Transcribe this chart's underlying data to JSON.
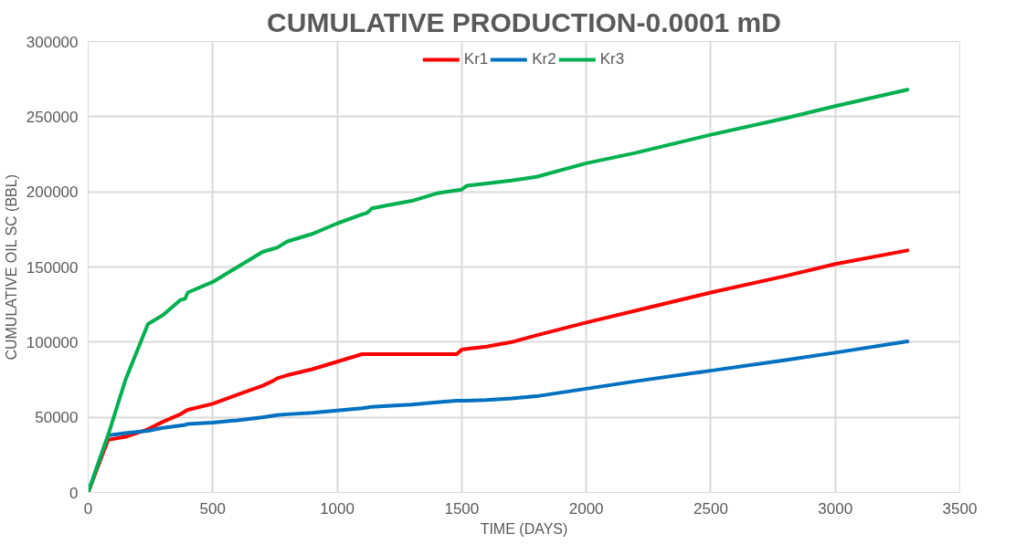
{
  "chart_data": {
    "type": "line",
    "title": "CUMULATIVE PRODUCTION-0.0001 mD",
    "xlabel": "TIME (DAYS)",
    "ylabel": "CUMULATIVE OIL SC (BBL)",
    "x": [
      0,
      80,
      150,
      240,
      300,
      370,
      390,
      400,
      500,
      600,
      700,
      740,
      760,
      800,
      900,
      1000,
      1100,
      1120,
      1140,
      1200,
      1300,
      1400,
      1480,
      1500,
      1520,
      1600,
      1700,
      1800,
      2000,
      2200,
      2500,
      2800,
      3000,
      3290
    ],
    "series": [
      {
        "name": "Kr1",
        "color": "#ff0000",
        "values": [
          0,
          35000,
          37000,
          42000,
          47000,
          52000,
          54000,
          55000,
          59000,
          65000,
          71000,
          74000,
          76000,
          78000,
          82000,
          87000,
          92000,
          92000,
          92000,
          92000,
          92000,
          92000,
          92000,
          95000,
          95500,
          97000,
          100000,
          104500,
          113000,
          121000,
          133000,
          144000,
          152000,
          161000
        ]
      },
      {
        "name": "Kr2",
        "color": "#0070c0",
        "values": [
          0,
          38000,
          39500,
          41000,
          43000,
          44500,
          45000,
          45500,
          46500,
          48000,
          50000,
          51000,
          51500,
          52000,
          53000,
          54500,
          56000,
          56500,
          57000,
          57500,
          58500,
          60000,
          61000,
          61000,
          61000,
          61500,
          62500,
          64000,
          69000,
          74000,
          81000,
          88000,
          93000,
          100500
        ]
      },
      {
        "name": "Kr3",
        "color": "#00b050",
        "values": [
          0,
          38000,
          75000,
          112000,
          118000,
          128000,
          129000,
          133000,
          140000,
          150000,
          160000,
          162000,
          163000,
          167000,
          172000,
          179000,
          185000,
          186000,
          189000,
          191000,
          194000,
          199000,
          201000,
          201500,
          204000,
          205500,
          207500,
          210000,
          219000,
          226000,
          238000,
          249000,
          257000,
          268000
        ]
      }
    ],
    "xlim": [
      0,
      3500
    ],
    "xticks": [
      0,
      500,
      1000,
      1500,
      2000,
      2500,
      3000,
      3500
    ],
    "ylim": [
      0,
      300000
    ],
    "yticks": [
      0,
      50000,
      100000,
      150000,
      200000,
      250000,
      300000
    ],
    "grid": true,
    "legend": "top",
    "marker": "none",
    "line_style": "solid"
  }
}
